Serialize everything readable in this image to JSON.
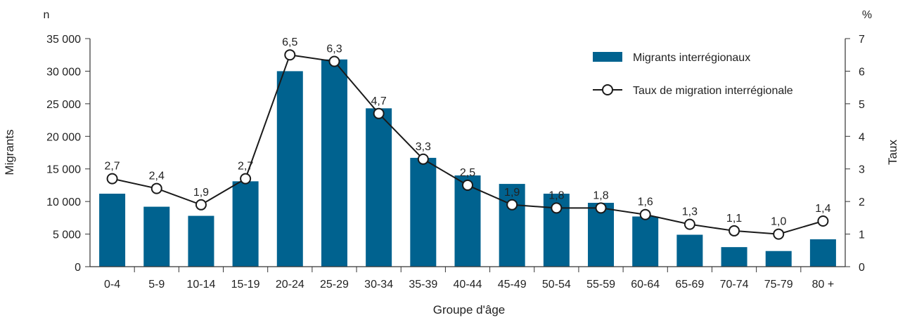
{
  "chart_data": {
    "type": "bar",
    "xlabel": "Groupe d'âge",
    "ylabel_left": "Migrants",
    "ylabel_right": "Taux",
    "unit_left": "n",
    "unit_right": "%",
    "categories": [
      "0-4",
      "5-9",
      "10-14",
      "15-19",
      "20-24",
      "25-29",
      "30-34",
      "35-39",
      "40-44",
      "45-49",
      "50-54",
      "55-59",
      "60-64",
      "65-69",
      "70-74",
      "75-79",
      "80 +"
    ],
    "ylim_left": [
      0,
      35000
    ],
    "ylim_right": [
      0,
      7
    ],
    "yticks_left": [
      "0",
      "5 000",
      "10 000",
      "15 000",
      "20 000",
      "25 000",
      "30 000",
      "35 000"
    ],
    "yticks_right": [
      "0",
      "1",
      "2",
      "3",
      "4",
      "5",
      "6",
      "7"
    ],
    "grid": false,
    "legend_position": "top-right",
    "series": [
      {
        "name": "Migrants interrégionaux",
        "type": "bar",
        "axis": "left",
        "color": "#00628f",
        "values": [
          11200,
          9200,
          7800,
          13100,
          30000,
          31800,
          24300,
          16700,
          14000,
          12700,
          11200,
          9800,
          7700,
          4900,
          3000,
          2400,
          4200
        ]
      },
      {
        "name": "Taux de migration interrégionale",
        "type": "line",
        "axis": "right",
        "color": "#1a1a1a",
        "marker": "open-circle",
        "values": [
          2.7,
          2.4,
          1.9,
          2.7,
          6.5,
          6.3,
          4.7,
          3.3,
          2.5,
          1.9,
          1.8,
          1.8,
          1.6,
          1.3,
          1.1,
          1.0,
          1.4
        ],
        "labels": [
          "2,7",
          "2,4",
          "1,9",
          "2,7",
          "6,5",
          "6,3",
          "4,7",
          "3,3",
          "2,5",
          "1,9",
          "1,8",
          "1,8",
          "1,6",
          "1,3",
          "1,1",
          "1,0",
          "1,4"
        ]
      }
    ]
  }
}
